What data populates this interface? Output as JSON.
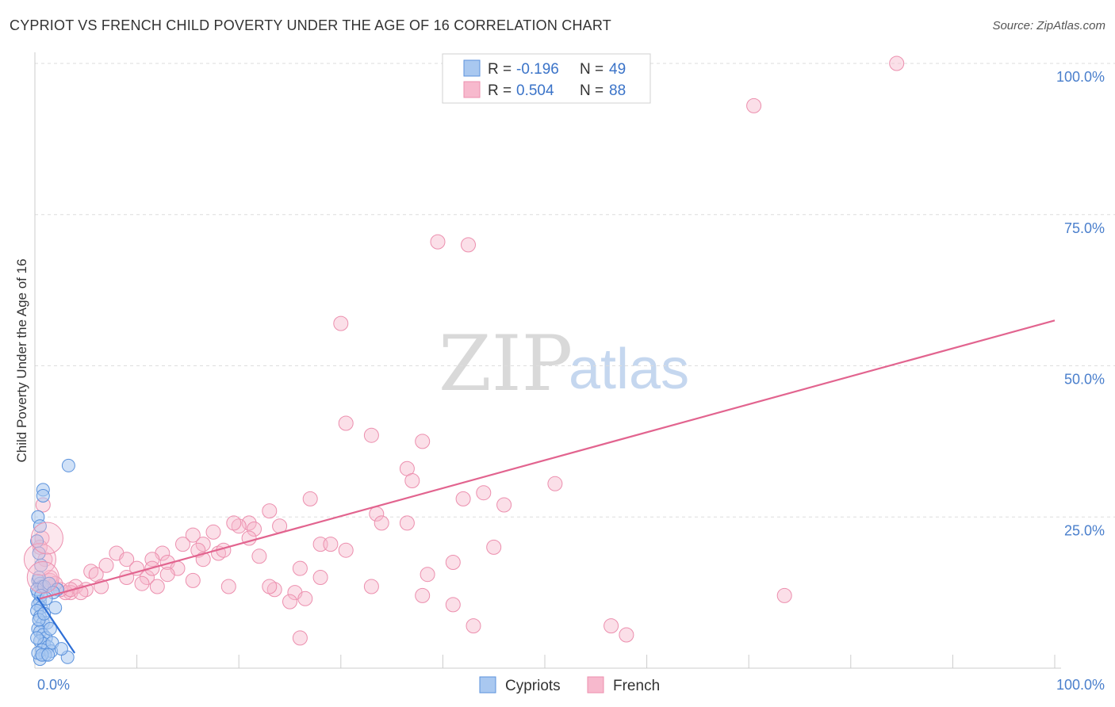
{
  "header": {
    "title": "CYPRIOT VS FRENCH CHILD POVERTY UNDER THE AGE OF 16 CORRELATION CHART",
    "source": "Source: ZipAtlas.com"
  },
  "watermark": {
    "zip": "ZIP",
    "atlas": "atlas"
  },
  "legend": {
    "r_label": "R = ",
    "n_label": "N = ",
    "items": [
      {
        "series": "Cypriots",
        "r": "-0.196",
        "n": "49"
      },
      {
        "series": "French",
        "r": "0.504",
        "n": "88"
      }
    ]
  },
  "chart_data": {
    "type": "scatter",
    "title": "CYPRIOT VS FRENCH CHILD POVERTY UNDER THE AGE OF 16 CORRELATION CHART",
    "xlabel": "",
    "ylabel": "Child Poverty Under the Age of 16",
    "xlim": [
      0,
      100
    ],
    "ylim": [
      0,
      100
    ],
    "x_tick_labels": [
      "0.0%",
      "100.0%"
    ],
    "y_tick_labels": [
      "100.0%",
      "75.0%",
      "50.0%",
      "25.0%"
    ],
    "y_gridlines": [
      25,
      50,
      75,
      100
    ],
    "legend_position": "top-center",
    "colors": {
      "cypriots_fill": "#a9c8f0",
      "cypriots_stroke": "#5b92dc",
      "cypriots_line": "#2e6fd6",
      "french_fill": "#f7b9cd",
      "french_stroke": "#ec8fae",
      "french_line": "#e2648f",
      "grid": "#dddddd",
      "tick_label": "#4a7fcc"
    },
    "series": [
      {
        "name": "Cypriots",
        "trend": {
          "x": [
            0.2,
            3.9
          ],
          "y": [
            11.8,
            2.5
          ]
        },
        "points": [
          [
            0.3,
            25
          ],
          [
            0.5,
            23.5
          ],
          [
            0.2,
            21
          ],
          [
            0.4,
            19
          ],
          [
            0.6,
            17
          ],
          [
            0.8,
            29.5
          ],
          [
            0.8,
            28.5
          ],
          [
            3.3,
            33.5
          ],
          [
            0.3,
            14.5
          ],
          [
            0.5,
            14
          ],
          [
            0.7,
            13.5
          ],
          [
            0.3,
            12.5
          ],
          [
            0.5,
            11
          ],
          [
            0.3,
            10.5
          ],
          [
            0.6,
            10
          ],
          [
            0.2,
            9.5
          ],
          [
            0.5,
            8.5
          ],
          [
            0.8,
            7.5
          ],
          [
            1.2,
            7.5
          ],
          [
            0.3,
            6.5
          ],
          [
            0.5,
            6
          ],
          [
            0.8,
            5.5
          ],
          [
            1.1,
            5
          ],
          [
            0.5,
            4.5
          ],
          [
            0.9,
            4
          ],
          [
            1.3,
            3.5
          ],
          [
            0.7,
            3
          ],
          [
            1.6,
            2.8
          ],
          [
            1.0,
            2.2
          ],
          [
            0.5,
            1.5
          ],
          [
            0.3,
            2.5
          ],
          [
            3.2,
            1.8
          ],
          [
            0.4,
            15
          ],
          [
            0.2,
            13
          ],
          [
            0.9,
            13.5
          ],
          [
            1.4,
            14
          ],
          [
            2.2,
            13
          ],
          [
            0.6,
            12
          ],
          [
            1.8,
            12.5
          ],
          [
            0.4,
            8
          ],
          [
            1.5,
            6.5
          ],
          [
            0.2,
            5
          ],
          [
            1.7,
            4.2
          ],
          [
            2.6,
            3.2
          ],
          [
            0.7,
            2.2
          ],
          [
            1.1,
            11.5
          ],
          [
            2.0,
            10
          ],
          [
            0.9,
            9
          ],
          [
            1.3,
            2.2
          ]
        ]
      },
      {
        "name": "French",
        "trend": {
          "x": [
            0.5,
            100
          ],
          "y": [
            11.5,
            57.5
          ]
        },
        "points": [
          [
            84.5,
            100
          ],
          [
            70.5,
            93
          ],
          [
            39.5,
            70.5
          ],
          [
            42.5,
            70
          ],
          [
            30,
            57
          ],
          [
            30.5,
            40.5
          ],
          [
            33,
            38.5
          ],
          [
            38,
            37.5
          ],
          [
            36.5,
            33
          ],
          [
            37,
            31
          ],
          [
            51,
            30.5
          ],
          [
            44,
            29
          ],
          [
            42,
            28
          ],
          [
            46,
            27
          ],
          [
            27,
            28
          ],
          [
            23,
            26
          ],
          [
            33.5,
            25.5
          ],
          [
            34,
            24
          ],
          [
            36.5,
            24
          ],
          [
            21,
            24
          ],
          [
            24,
            23.5
          ],
          [
            21.5,
            23
          ],
          [
            20,
            23.5
          ],
          [
            21,
            21.5
          ],
          [
            15.5,
            22
          ],
          [
            14.5,
            20.5
          ],
          [
            16.5,
            20.5
          ],
          [
            28,
            20.5
          ],
          [
            29,
            20.5
          ],
          [
            45,
            20
          ],
          [
            16,
            19.5
          ],
          [
            18,
            19
          ],
          [
            30.5,
            19.5
          ],
          [
            8,
            19
          ],
          [
            9,
            18
          ],
          [
            12.5,
            19
          ],
          [
            11.5,
            18
          ],
          [
            16.5,
            18
          ],
          [
            22,
            18.5
          ],
          [
            13,
            17.5
          ],
          [
            7,
            17
          ],
          [
            10,
            16.5
          ],
          [
            14,
            16.5
          ],
          [
            26,
            16.5
          ],
          [
            38.5,
            15.5
          ],
          [
            41,
            17.5
          ],
          [
            28,
            15
          ],
          [
            5.5,
            16
          ],
          [
            6,
            15.5
          ],
          [
            11,
            15
          ],
          [
            11.5,
            16.5
          ],
          [
            13,
            15.5
          ],
          [
            9,
            15
          ],
          [
            10.5,
            14
          ],
          [
            15.5,
            14.5
          ],
          [
            19,
            13.5
          ],
          [
            33,
            13.5
          ],
          [
            23.5,
            13
          ],
          [
            23,
            13.5
          ],
          [
            25.5,
            12.5
          ],
          [
            4,
            13.5
          ],
          [
            5,
            13
          ],
          [
            3.5,
            12.5
          ],
          [
            38,
            12
          ],
          [
            3,
            12.5
          ],
          [
            26.5,
            11.5
          ],
          [
            25,
            11
          ],
          [
            41,
            10.5
          ],
          [
            73.5,
            12
          ],
          [
            43,
            7
          ],
          [
            58,
            5.5
          ],
          [
            56.5,
            7
          ],
          [
            26,
            5
          ],
          [
            2.5,
            13
          ],
          [
            1.5,
            14.5
          ],
          [
            2,
            14
          ],
          [
            1,
            18
          ],
          [
            0.7,
            21.5
          ],
          [
            0.5,
            20
          ],
          [
            1.5,
            15
          ],
          [
            0.8,
            27
          ],
          [
            18.5,
            19.5
          ],
          [
            19.5,
            24
          ],
          [
            17.5,
            22.5
          ],
          [
            12,
            13.5
          ],
          [
            3.5,
            13
          ],
          [
            6.5,
            13.5
          ],
          [
            4.5,
            12.5
          ]
        ]
      }
    ]
  },
  "bottom_legend": {
    "items": [
      "Cypriots",
      "French"
    ]
  }
}
